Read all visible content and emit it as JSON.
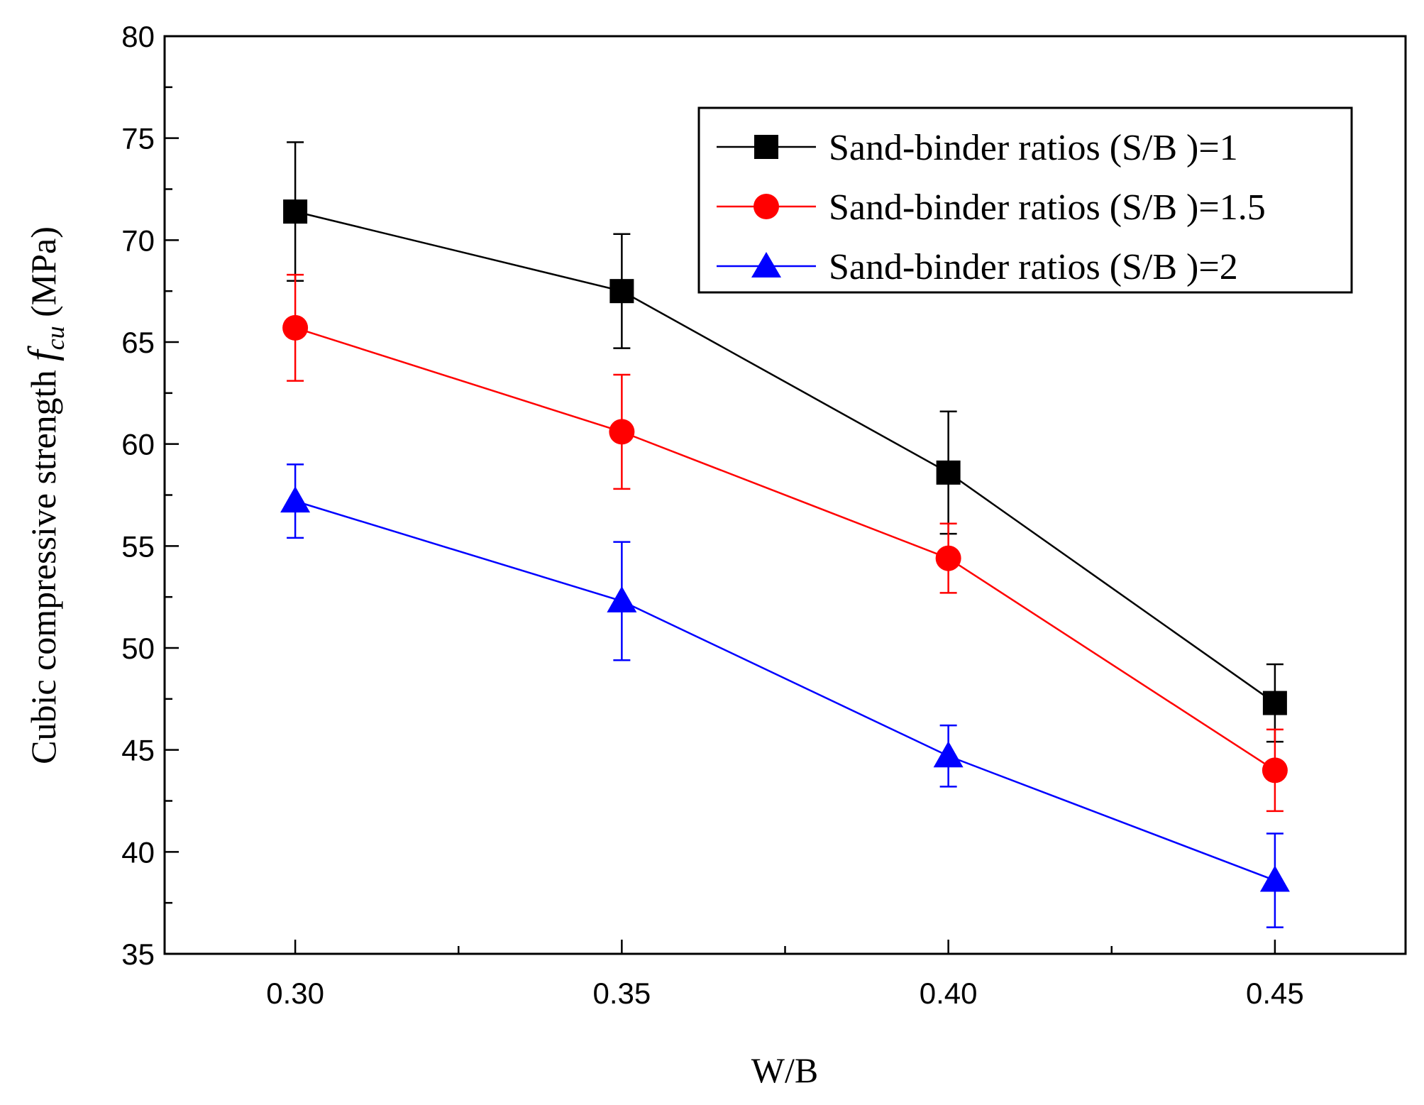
{
  "chart_data": {
    "type": "line",
    "title": "",
    "xlabel": "W/B",
    "ylabel_parts": {
      "prefix": "Cubic compressive strength ",
      "symbol": "f",
      "subscript": "cu",
      "suffix": " (MPa)"
    },
    "x": [
      0.3,
      0.35,
      0.4,
      0.45
    ],
    "x_tick_labels": [
      "0.30",
      "0.35",
      "0.40",
      "0.45"
    ],
    "xlim": [
      0.28,
      0.47
    ],
    "x_minor_ticks": [
      0.325,
      0.375,
      0.425
    ],
    "ylim": [
      35,
      80
    ],
    "y_ticks": [
      35,
      40,
      45,
      50,
      55,
      60,
      65,
      70,
      75,
      80
    ],
    "y_tick_labels": [
      "35",
      "40",
      "45",
      "50",
      "55",
      "60",
      "65",
      "70",
      "75",
      "80"
    ],
    "grid": false,
    "legend_position": "top-right",
    "series": [
      {
        "name": "Sand-binder ratios (S/B )=1",
        "color": "#000000",
        "marker": "square",
        "values": [
          71.4,
          67.5,
          58.6,
          47.3
        ],
        "error": [
          3.4,
          2.8,
          3.0,
          1.9
        ]
      },
      {
        "name": "Sand-binder ratios (S/B )=1.5",
        "color": "#ff0000",
        "marker": "circle",
        "values": [
          65.7,
          60.6,
          54.4,
          44.0
        ],
        "error": [
          2.6,
          2.8,
          1.7,
          2.0
        ]
      },
      {
        "name": "Sand-binder ratios (S/B )=2",
        "color": "#0000ff",
        "marker": "triangle",
        "values": [
          57.2,
          52.3,
          44.7,
          38.6
        ],
        "error": [
          1.8,
          2.9,
          1.5,
          2.3
        ]
      }
    ]
  }
}
